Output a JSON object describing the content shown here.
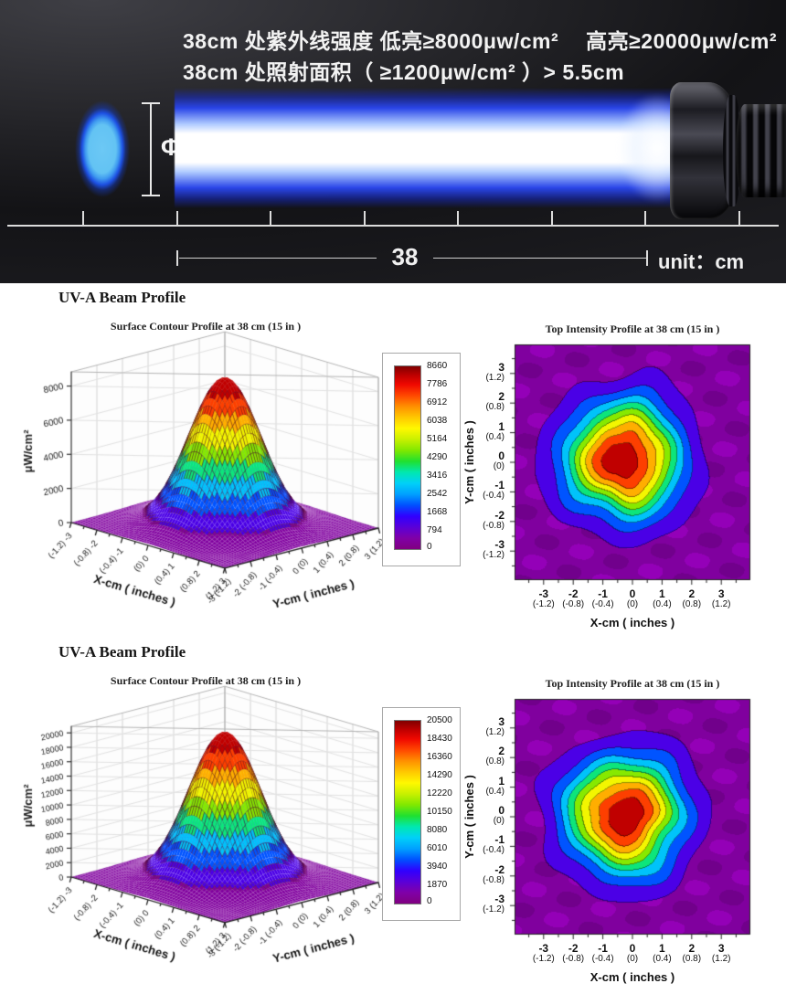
{
  "banner": {
    "line1_left": "38cm 处紫外线强度 低亮≥8000μw/cm²",
    "line1_right": "高亮≥20000μw/cm²",
    "line2": "38cm 处照射面积（ ≥1200μw/cm² ）> 5.5cm",
    "diameter_label": "Φ 5.5",
    "distance_value": "38",
    "unit_label": "unit：cm"
  },
  "colors": {
    "banner_background": "#1a1a1e",
    "beam_edge_blue": "#2a46e8",
    "spot_blue": "#63c3f3",
    "heat_background_purple": "#800082",
    "colormap": [
      [
        0,
        "#800080"
      ],
      [
        0.06,
        "#8000a8"
      ],
      [
        0.12,
        "#5a00d8"
      ],
      [
        0.18,
        "#3000ff"
      ],
      [
        0.24,
        "#0050ff"
      ],
      [
        0.3,
        "#00a0ff"
      ],
      [
        0.36,
        "#00d0f8"
      ],
      [
        0.42,
        "#00e8b0"
      ],
      [
        0.48,
        "#20e030"
      ],
      [
        0.54,
        "#80e800"
      ],
      [
        0.6,
        "#c8f000"
      ],
      [
        0.66,
        "#fff800"
      ],
      [
        0.72,
        "#ffc800"
      ],
      [
        0.78,
        "#ff9000"
      ],
      [
        0.84,
        "#ff4800"
      ],
      [
        0.9,
        "#f00800"
      ],
      [
        0.95,
        "#c00000"
      ],
      [
        1,
        "#800000"
      ]
    ]
  },
  "chart_data": [
    {
      "heading": "UV-A Beam Profile",
      "levels": [
        0,
        794,
        1668,
        2542,
        3416,
        4290,
        5164,
        6038,
        6912,
        7786,
        8660
      ],
      "surface": {
        "type": "surface",
        "title": "Surface Contour Profile at 38 cm (15 in )",
        "zlabel": "μW/cm²",
        "xlabel": "X-cm ( inches )",
        "ylabel": "Y-cm ( inches )",
        "x_ticks": [
          "(-1.2) -3",
          "(-0.8) -2",
          "(-0.4) -1",
          "(0) 0",
          "(0.4) 1",
          "(0.8) 2",
          "(1.2) 3"
        ],
        "y_ticks": [
          "-3 (-1.2)",
          "-2 (-0.8)",
          "-1 (-0.4)",
          "0 (0)",
          "1 (0.4)",
          "2 (0.8)",
          "3 (1.2)"
        ],
        "z_ticks": [
          0,
          2000,
          4000,
          6000,
          8000
        ],
        "peak": 8660,
        "sigma": 1.0
      },
      "heatmap": {
        "type": "heatmap",
        "title": "Top Intensity Profile at 38 cm (15 in )",
        "xlabel": "X-cm ( inches )",
        "ylabel": "Y-cm ( inches )",
        "x_ticks_cm": [
          "-3",
          "-2",
          "-1",
          "0",
          "1",
          "2",
          "3"
        ],
        "x_ticks_in": [
          "(-1.2)",
          "(-0.8)",
          "(-0.4)",
          "(0)",
          "(0.4)",
          "(0.8)",
          "(1.2)"
        ],
        "y_ticks_cm": [
          "3",
          "2",
          "1",
          "0",
          "-1",
          "-2",
          "-3"
        ],
        "y_ticks_in": [
          "(1.2)",
          "(0.8)",
          "(0.4)",
          "(0)",
          "(-0.4)",
          "(-0.8)",
          "(-1.2)"
        ],
        "peak": 8660,
        "sigma": 1.32,
        "center": [
          -0.3,
          0.1
        ],
        "range": 3.95,
        "seed": 1
      }
    },
    {
      "heading": "UV-A Beam Profile",
      "levels": [
        0,
        1870,
        3940,
        6010,
        8080,
        10150,
        12220,
        14290,
        16360,
        18430,
        20500
      ],
      "surface": {
        "type": "surface",
        "title": "Surface Contour Profile at 38 cm (15 in )",
        "zlabel": "μW/cm²",
        "xlabel": "X-cm ( inches )",
        "ylabel": "Y-cm ( inches )",
        "x_ticks": [
          "(-1.2) -3",
          "(-0.8) -2",
          "(-0.4) -1",
          "(0) 0",
          "(0.4) 1",
          "(0.8) 2",
          "(1.2) 3"
        ],
        "y_ticks": [
          "-3 (-1.2)",
          "-2 (-0.8)",
          "-1 (-0.4)",
          "0 (0)",
          "1 (0.4)",
          "2 (0.8)",
          "3 (1.2)"
        ],
        "z_ticks": [
          0,
          2000,
          4000,
          6000,
          8000,
          10000,
          12000,
          14000,
          16000,
          18000,
          20000
        ],
        "peak": 20500,
        "sigma": 1.0
      },
      "heatmap": {
        "type": "heatmap",
        "title": "Top Intensity Profile at 38 cm (15 in )",
        "xlabel": "X-cm ( inches )",
        "ylabel": "Y-cm ( inches )",
        "x_ticks_cm": [
          "-3",
          "-2",
          "-1",
          "0",
          "1",
          "2",
          "3"
        ],
        "x_ticks_in": [
          "(-1.2)",
          "(-0.8)",
          "(-0.4)",
          "(0)",
          "(0.4)",
          "(0.8)",
          "(1.2)"
        ],
        "y_ticks_cm": [
          "3",
          "2",
          "1",
          "0",
          "-1",
          "-2",
          "-3"
        ],
        "y_ticks_in": [
          "(1.2)",
          "(0.8)",
          "(0.4)",
          "(0)",
          "(-0.4)",
          "(-0.8)",
          "(-1.2)"
        ],
        "peak": 20500,
        "sigma": 1.32,
        "center": [
          -0.28,
          0.05
        ],
        "range": 3.95,
        "seed": 2
      }
    }
  ]
}
